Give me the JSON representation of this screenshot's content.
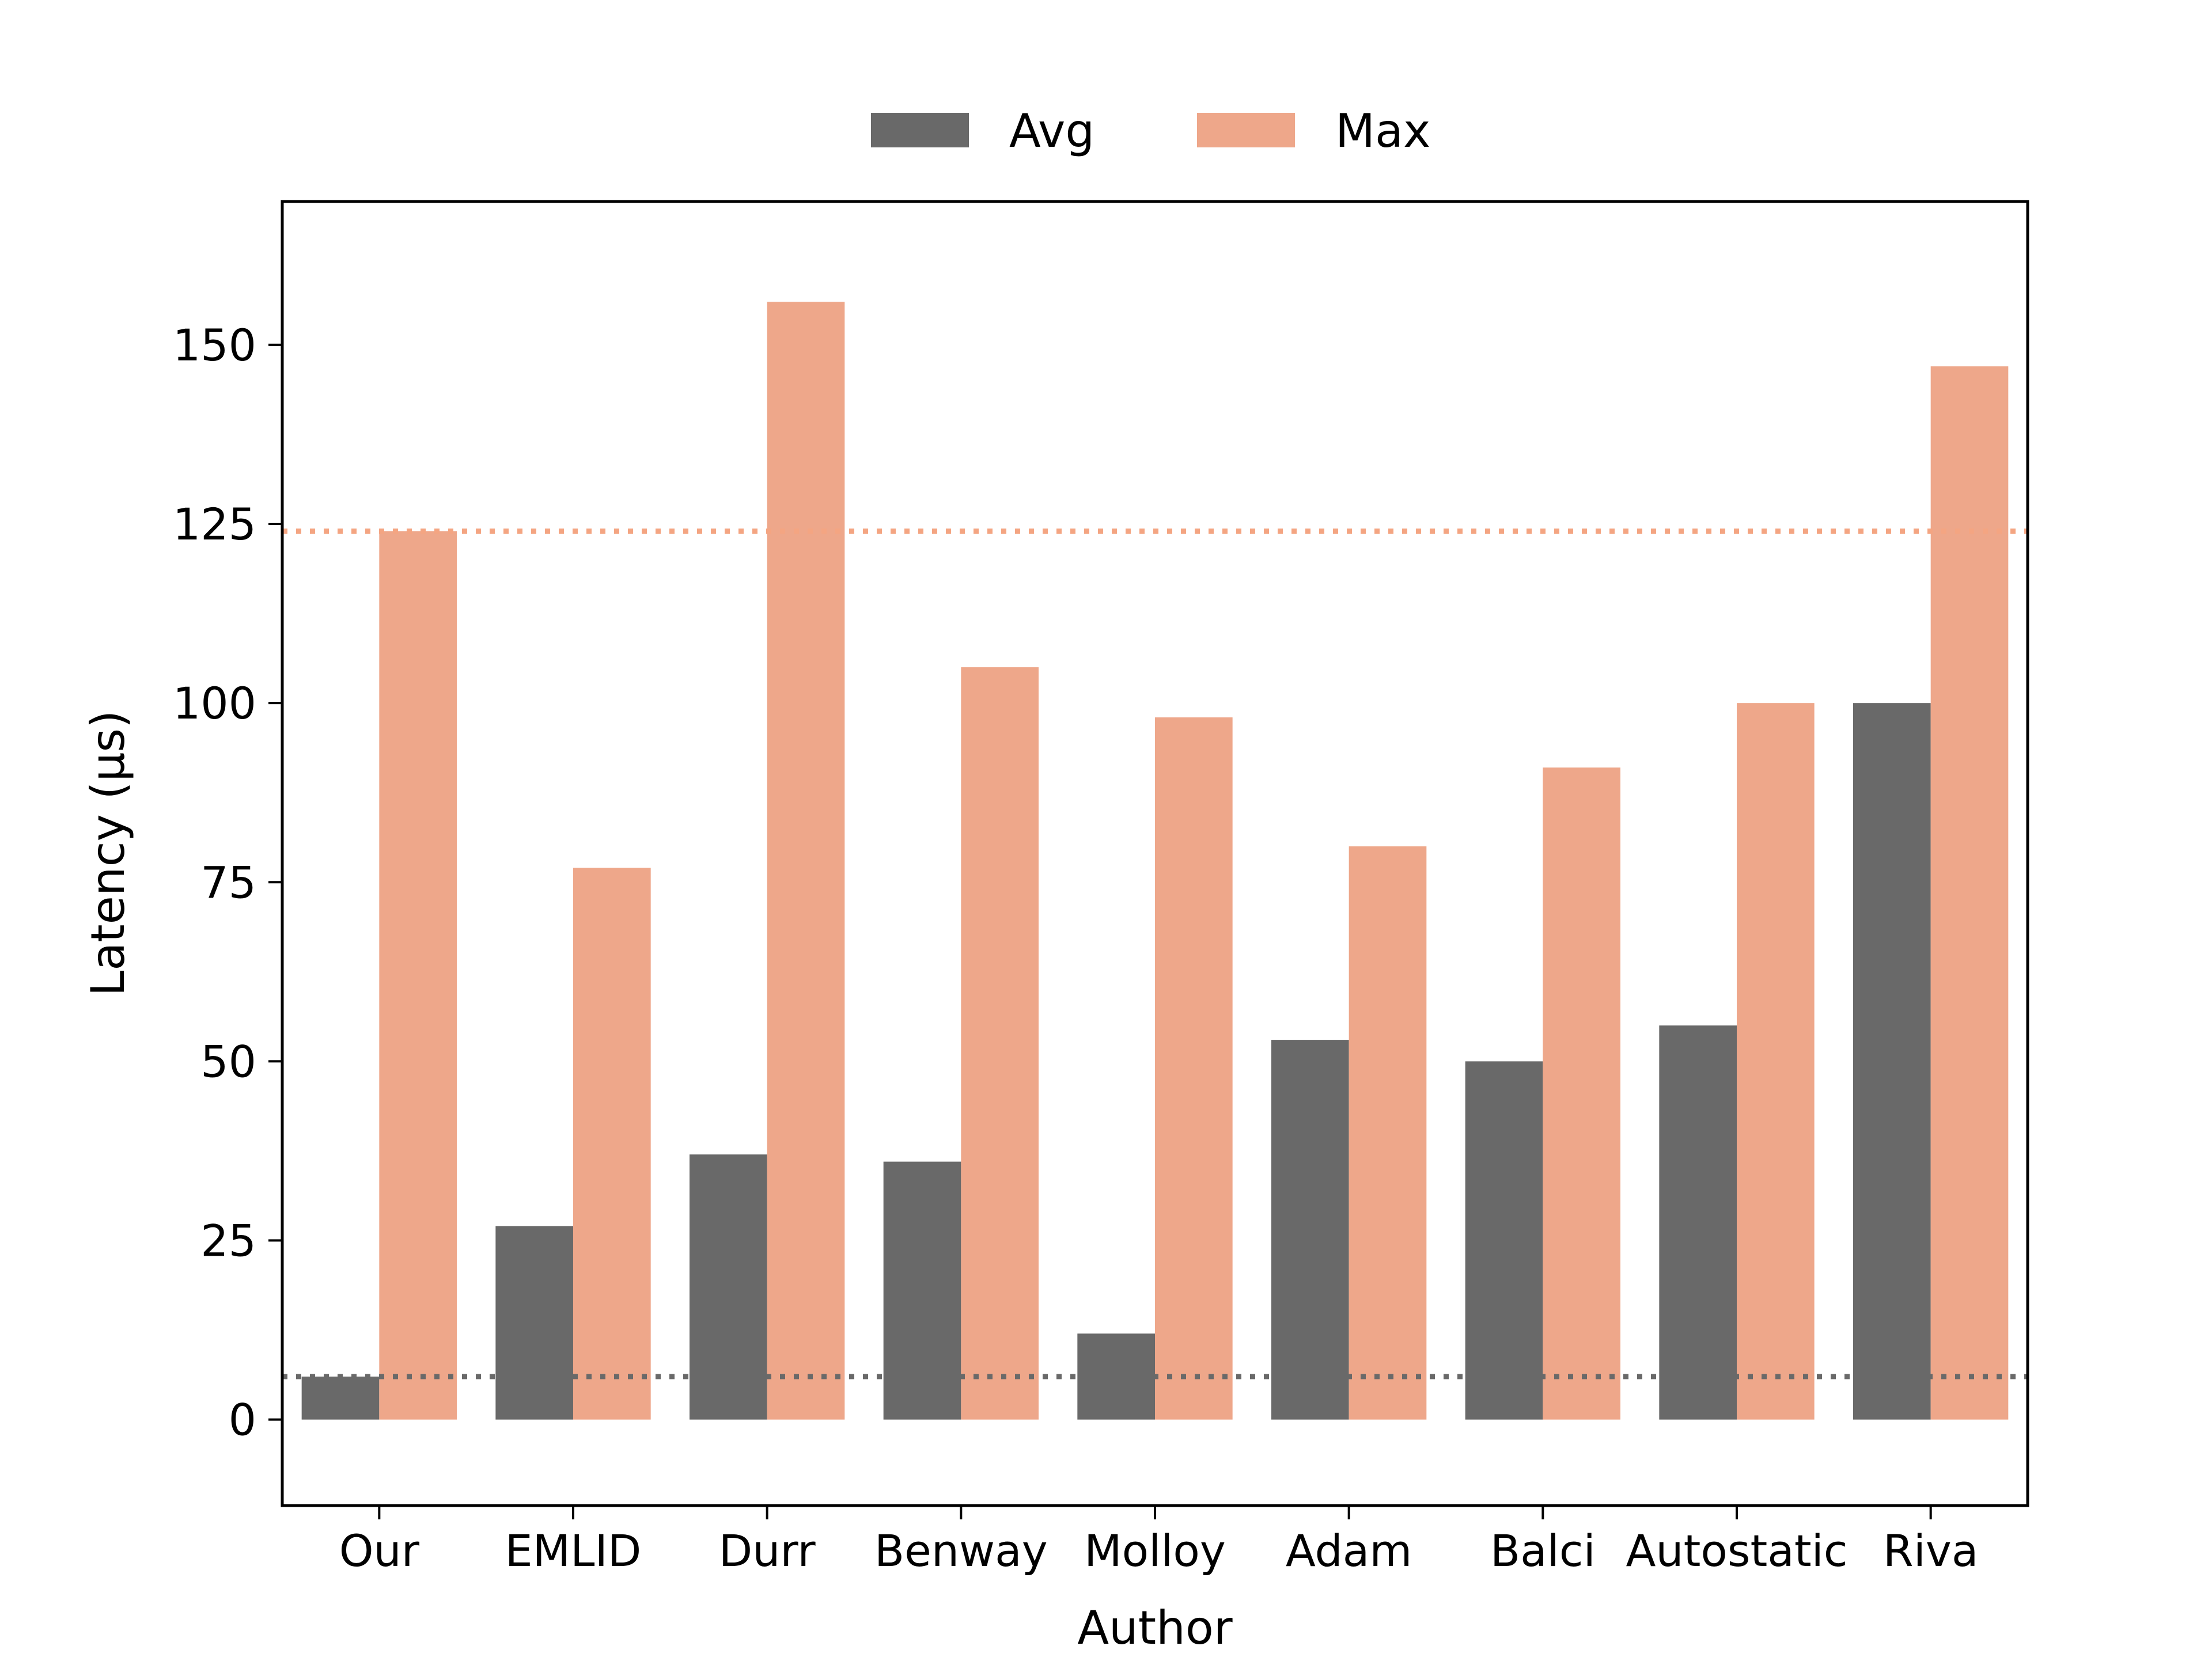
{
  "chart_data": {
    "type": "bar",
    "xlabel": "Author",
    "ylabel": "Latency (µs)",
    "categories": [
      "Our",
      "EMLID",
      "Durr",
      "Benway",
      "Molloy",
      "Adam",
      "Balci",
      "Autostatic",
      "Riva"
    ],
    "series": [
      {
        "name": "Avg",
        "color": "#696969",
        "values": [
          6,
          27,
          37,
          36,
          12,
          53,
          50,
          55,
          100
        ]
      },
      {
        "name": "Max",
        "color": "#eea78a",
        "values": [
          124,
          77,
          156,
          105,
          98,
          80,
          91,
          100,
          147
        ]
      }
    ],
    "ylim": [
      -12,
      170
    ],
    "yticks": [
      0,
      25,
      50,
      75,
      100,
      125,
      150
    ],
    "reference_lines": [
      {
        "series": "Avg",
        "value": 6,
        "style": "dotted",
        "color": "#696969"
      },
      {
        "series": "Max",
        "value": 124,
        "style": "dotted",
        "color": "#f4a582"
      }
    ],
    "legend_position": "top-center",
    "grid": false
  }
}
